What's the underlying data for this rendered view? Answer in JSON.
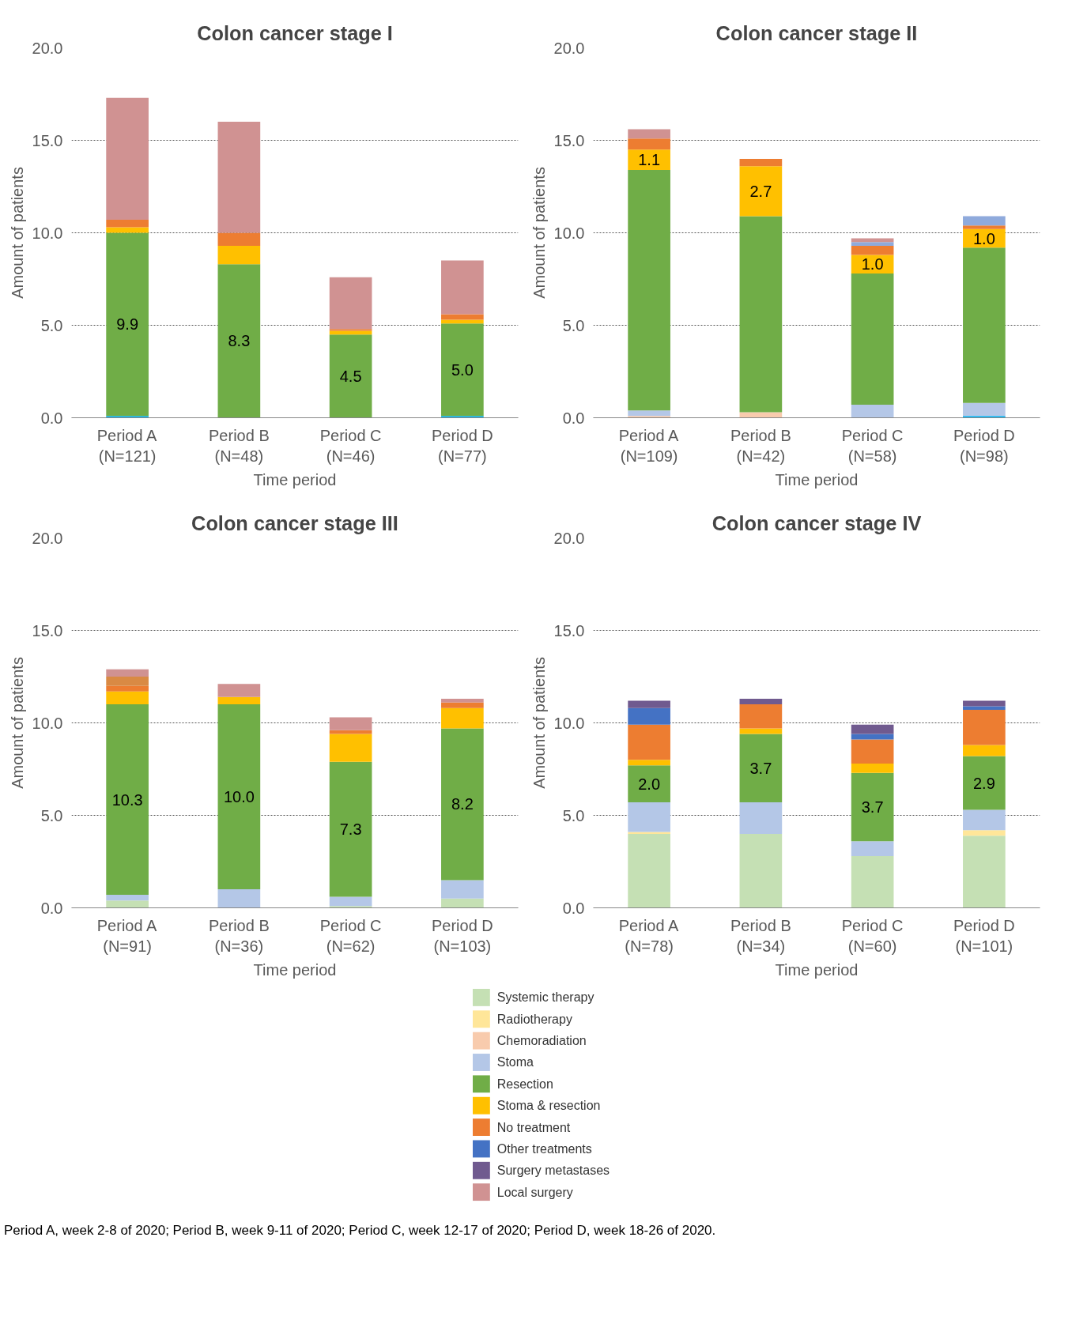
{
  "chart_data": [
    {
      "type": "bar",
      "title": "Colon cancer stage I",
      "xlabel": "Time period",
      "ylabel": "Amount of patients",
      "categories": [
        "Period A\n(N=121)",
        "Period B\n(N=48)",
        "Period C\n(N=46)",
        "Period D\n(N=77)"
      ],
      "stacked": true,
      "ylim": [
        0,
        20
      ],
      "yticks": [
        {
          "value": 0,
          "label": "0.0"
        },
        {
          "value": 5,
          "label": "5.0"
        },
        {
          "value": 10,
          "label": "10.0"
        },
        {
          "value": 15,
          "label": "15.0"
        },
        {
          "value": 20,
          "label": "20.0"
        }
      ],
      "grid": "y",
      "series": [
        {
          "color": "#00b0f0",
          "values": [
            0.1,
            null,
            null,
            0.1
          ]
        },
        {
          "color": "#70ad47",
          "values": [
            9.9,
            8.3,
            4.5,
            5.0
          ],
          "value_labels": [
            "9.9",
            "8.3",
            "4.5",
            "5.0"
          ]
        },
        {
          "color": "#ffc000",
          "values": [
            0.3,
            1.0,
            0.2,
            0.2
          ]
        },
        {
          "color": "#ed7d31",
          "values": [
            0.4,
            0.7,
            0.1,
            0.3
          ]
        },
        {
          "color": "#d09292",
          "values": [
            6.6,
            6.0,
            2.8,
            2.9
          ]
        }
      ]
    },
    {
      "type": "bar",
      "title": "Colon cancer stage II",
      "xlabel": "Time period",
      "ylabel": "Amount of patients",
      "categories": [
        "Period A\n(N=109)",
        "Period B\n(N=42)",
        "Period C\n(N=58)",
        "Period D\n(N=98)"
      ],
      "stacked": true,
      "ylim": [
        0,
        20
      ],
      "yticks": [
        {
          "value": 0,
          "label": "0.0"
        },
        {
          "value": 5,
          "label": "5.0"
        },
        {
          "value": 10,
          "label": "10.0"
        },
        {
          "value": 15,
          "label": "15.0"
        },
        {
          "value": 20,
          "label": "20.0"
        }
      ],
      "grid": "y",
      "series": [
        {
          "color": "#00b0f0",
          "values": [
            null,
            null,
            null,
            0.1
          ]
        },
        {
          "color": "#f8cbad",
          "values": [
            0.1,
            0.3,
            null,
            null
          ]
        },
        {
          "color": "#b4c7e7",
          "values": [
            0.3,
            null,
            0.7,
            0.7
          ]
        },
        {
          "color": "#70ad47",
          "values": [
            13.0,
            10.6,
            7.1,
            8.4
          ]
        },
        {
          "color": "#ffc000",
          "values": [
            1.1,
            2.7,
            1.0,
            1.0
          ],
          "value_labels": [
            "1.1",
            "2.7",
            "1.0",
            "1.0"
          ]
        },
        {
          "color": "#ed7d31",
          "values": [
            0.6,
            0.4,
            0.5,
            0.2
          ]
        },
        {
          "color": "#8faadc",
          "values": [
            null,
            null,
            0.2,
            0.5
          ]
        },
        {
          "color": "#d09292",
          "values": [
            0.5,
            null,
            0.2,
            null
          ]
        }
      ]
    },
    {
      "type": "bar",
      "title": "Colon cancer stage III",
      "xlabel": "Time period",
      "ylabel": "Amount of patients",
      "categories": [
        "Period A\n(N=91)",
        "Period B\n(N=36)",
        "Period C\n(N=62)",
        "Period D\n(N=103)"
      ],
      "stacked": true,
      "ylim": [
        0,
        20
      ],
      "yticks": [
        {
          "value": 0,
          "label": "0.0"
        },
        {
          "value": 5,
          "label": "5.0"
        },
        {
          "value": 10,
          "label": "10.0"
        },
        {
          "value": 15,
          "label": "15.0"
        },
        {
          "value": 20,
          "label": "20.0"
        }
      ],
      "grid": "y",
      "series": [
        {
          "color": "#c5e0b4",
          "values": [
            0.4,
            null,
            0.1,
            0.5
          ]
        },
        {
          "color": "#b4c7e7",
          "values": [
            0.3,
            1.0,
            0.5,
            1.0
          ]
        },
        {
          "color": "#70ad47",
          "values": [
            10.3,
            10.0,
            7.3,
            8.2
          ],
          "value_labels": [
            "10.3",
            "10.0",
            "7.3",
            "8.2"
          ]
        },
        {
          "color": "#ffc000",
          "values": [
            0.7,
            0.4,
            1.5,
            1.1
          ]
        },
        {
          "color": "#ed7d31",
          "values": [
            0.3,
            null,
            0.2,
            0.3
          ]
        },
        {
          "color": "#d98a44",
          "values": [
            0.5,
            null,
            null,
            null
          ]
        },
        {
          "color": "#d09292",
          "values": [
            0.4,
            0.7,
            0.7,
            0.2
          ]
        }
      ]
    },
    {
      "type": "bar",
      "title": "Colon cancer stage IV",
      "xlabel": "Time period",
      "ylabel": "Amount of patients",
      "categories": [
        "Period A\n(N=78)",
        "Period B\n(N=34)",
        "Period C\n(N=60)",
        "Period D\n(N=101)"
      ],
      "stacked": true,
      "ylim": [
        0,
        20
      ],
      "yticks": [
        {
          "value": 0,
          "label": "0.0"
        },
        {
          "value": 5,
          "label": "5.0"
        },
        {
          "value": 10,
          "label": "10.0"
        },
        {
          "value": 15,
          "label": "15.0"
        },
        {
          "value": 20,
          "label": "20.0"
        }
      ],
      "grid": "y",
      "legend": "bottom",
      "annotations": [
        "Period A, week 2-8 of 2020; Period B, week 9-11 of 2020; Period C, week 12-17 of 2020; Period D, week 18-26 of 2020."
      ],
      "series": [
        {
          "name": "Systemic therapy",
          "color": "#c5e0b4",
          "values": [
            4.0,
            4.0,
            2.8,
            3.9
          ]
        },
        {
          "name": "Radiotherapy",
          "color": "#ffe699",
          "values": [
            0.1,
            null,
            null,
            0.3
          ]
        },
        {
          "name": "Chemoradiation",
          "color": "#f8cbad",
          "values": [
            null,
            null,
            null,
            null
          ]
        },
        {
          "name": "Stoma",
          "color": "#b4c7e7",
          "values": [
            1.6,
            1.7,
            0.8,
            1.1
          ]
        },
        {
          "name": "Resection",
          "color": "#70ad47",
          "values": [
            2.0,
            3.7,
            3.7,
            2.9
          ],
          "value_labels": [
            "2.0",
            "3.7",
            "3.7",
            "2.9"
          ]
        },
        {
          "name": "Stoma & resection",
          "color": "#ffc000",
          "values": [
            0.3,
            0.3,
            0.5,
            0.6
          ]
        },
        {
          "name": "No treatment",
          "color": "#ed7d31",
          "values": [
            1.9,
            1.3,
            1.3,
            1.9
          ]
        },
        {
          "name": "Other treatments",
          "color": "#4472c4",
          "values": [
            0.9,
            null,
            0.3,
            0.2
          ]
        },
        {
          "name": "Surgery metastases",
          "color": "#705a8f",
          "values": [
            0.4,
            0.3,
            0.5,
            0.3
          ]
        },
        {
          "name": "Local surgery",
          "color": "#d09292",
          "values": [
            null,
            null,
            null,
            null
          ]
        }
      ]
    }
  ]
}
